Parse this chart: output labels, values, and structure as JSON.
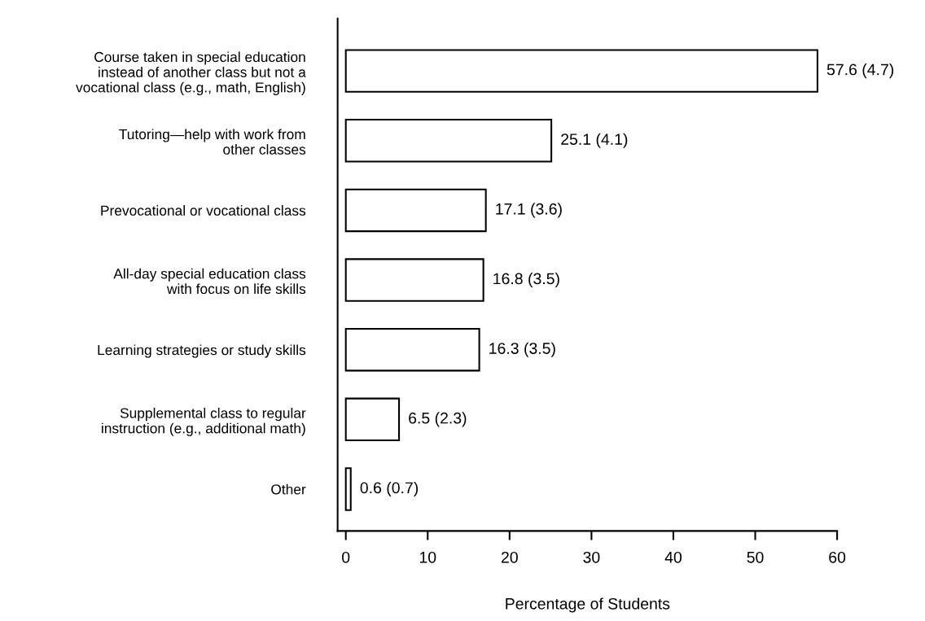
{
  "chart_data": {
    "type": "bar",
    "orientation": "horizontal",
    "categories": [
      "Course taken in special education\ninstead of another class but not a\nvocational class (e.g., math, English)",
      "Tutoring—help with work from\nother classes",
      "Prevocational or vocational class",
      "All-day special education class\nwith focus on life skills",
      "Learning strategies or study skills",
      "Supplemental class to regular\ninstruction (e.g., additional math)",
      "Other"
    ],
    "values": [
      57.6,
      25.1,
      17.1,
      16.8,
      16.3,
      6.5,
      0.6
    ],
    "value_labels": [
      "57.6 (4.7)",
      "25.1 (4.1)",
      "17.1 (3.6)",
      "16.8 (3.5)",
      "16.3 (3.5)",
      "6.5 (2.3)",
      "0.6 (0.7)"
    ],
    "color": "#ffffff",
    "xlabel": "Percentage of Students",
    "xlim": [
      -1,
      60
    ],
    "xticks": [
      0,
      10,
      20,
      30,
      40,
      50,
      60
    ],
    "grid": false,
    "legend": false
  }
}
